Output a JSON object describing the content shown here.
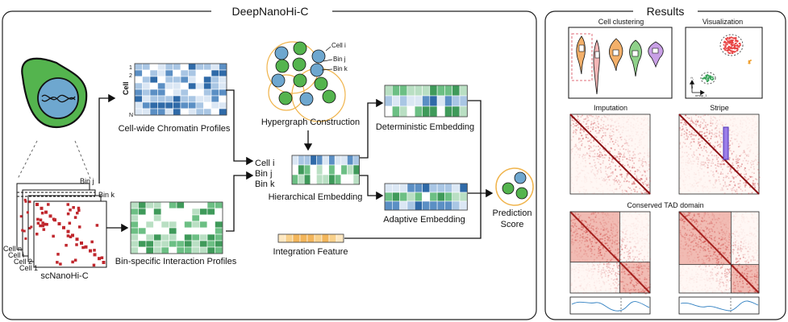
{
  "pipeline": {
    "title": "DeepNanoHi-C",
    "input_label": "scNanoHi-C",
    "cell_labels": [
      "Cell n",
      "Cell i",
      "Cell 2",
      "Cell 1"
    ],
    "bin_j": "Bin j",
    "bin_k": "Bin k",
    "chromatin_profiles": {
      "label": "Cell-wide Chromatin Profiles",
      "axis_label": "Cell",
      "row_ticks": [
        "1",
        "2",
        "N"
      ]
    },
    "bin_profiles_label": "Bin-specific Interaction Profiles",
    "hypergraph": {
      "label": "Hypergraph Construction",
      "node_labels": [
        "Cell i",
        "Bin j",
        "Bin k"
      ]
    },
    "hierarchical": {
      "label": "Hierarchical Embedding",
      "row_labels": [
        "Cell i",
        "Bin j",
        "Bin k"
      ]
    },
    "deterministic_label": "Deterministic Embedding",
    "adaptive_label": "Adaptive Embedding",
    "integration_label": "Integration Feature",
    "prediction": {
      "line1": "Prediction",
      "line2": "Score"
    }
  },
  "results": {
    "title": "Results",
    "cell_clustering": "Cell clustering",
    "visualization": "Visualization",
    "umap_x": "umap_1",
    "umap_y": "umap_2",
    "imputation": "Imputation",
    "stripe": "Stripe",
    "tad": "Conserved TAD domain"
  },
  "colors": {
    "blue": "#5b8fc4",
    "light_blue": "#c9dcef",
    "green": "#3f9a5a",
    "light_green": "#b9dfc3",
    "red": "#c0272d",
    "orange": "#f2c879",
    "violin_orange": "#f3b06a",
    "violin_pink": "#f4b7b7",
    "violin_green": "#8fd18a",
    "violin_purple": "#c9a0e6"
  }
}
